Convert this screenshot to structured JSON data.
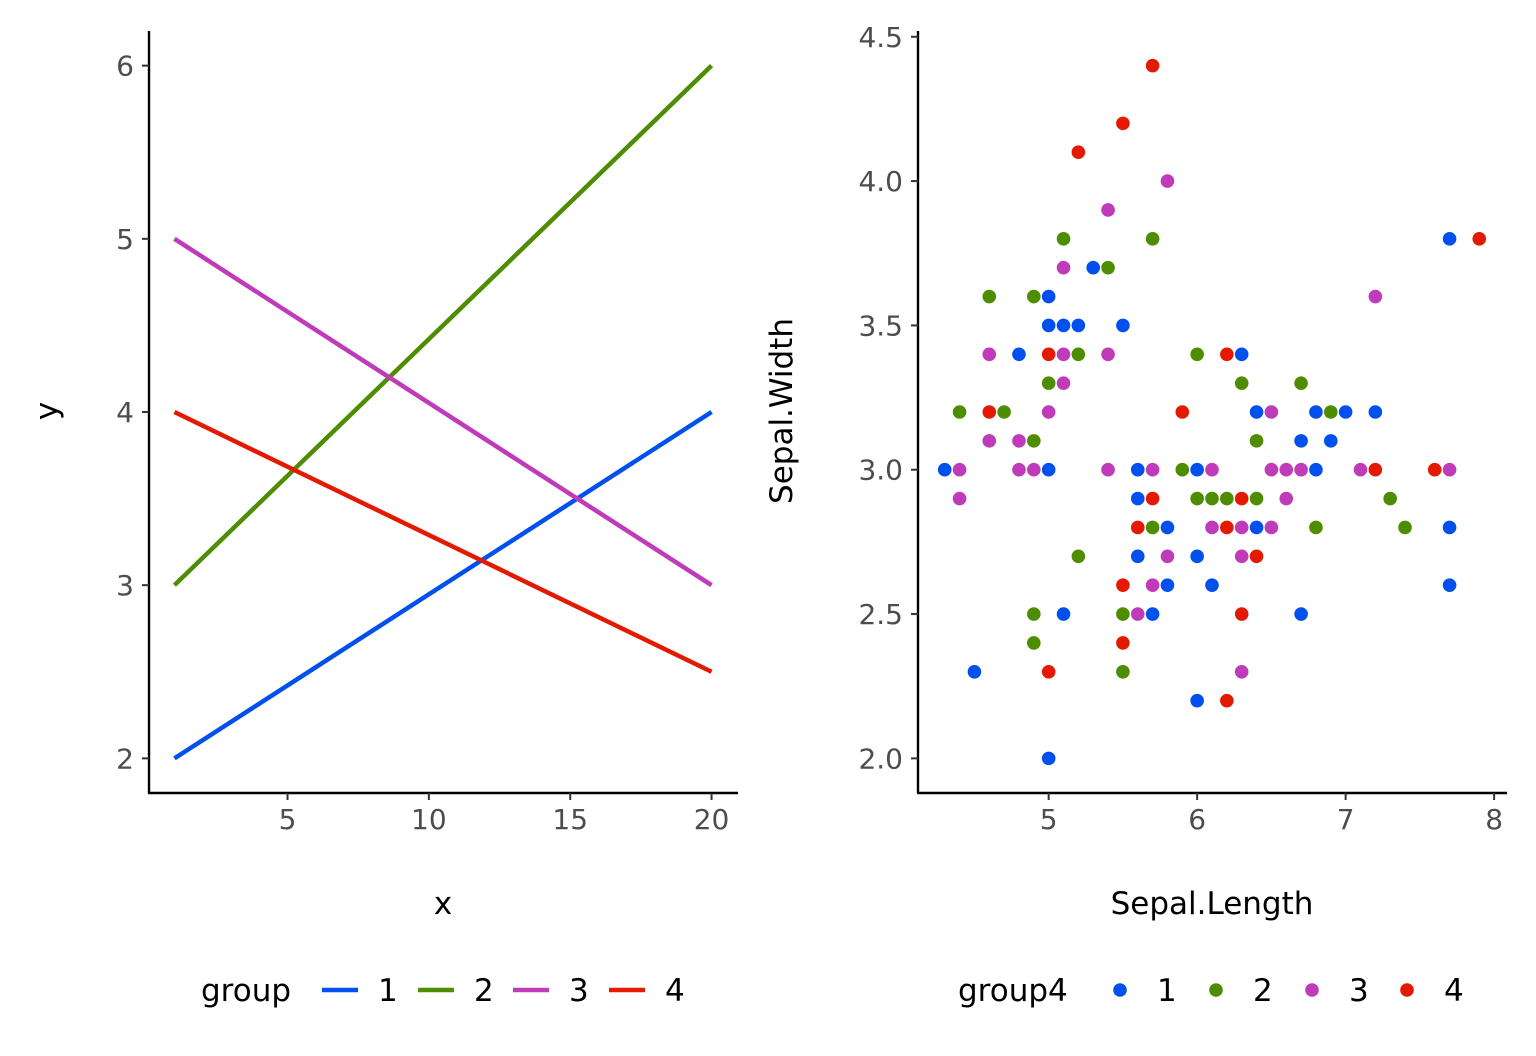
{
  "colors": {
    "1": "#0050ED",
    "2": "#4E8D00",
    "3": "#BF3BB9",
    "4": "#E41A00"
  },
  "chart_data": [
    {
      "type": "line",
      "xlabel": "x",
      "ylabel": "y",
      "xlim": [
        0.1,
        20.9
      ],
      "ylim": [
        1.8,
        6.2
      ],
      "xticks": [
        5,
        10,
        15,
        20
      ],
      "xtick_labels": [
        "5",
        "10",
        "15",
        "20"
      ],
      "yticks": [
        2,
        3,
        4,
        5,
        6
      ],
      "ytick_labels": [
        "2",
        "3",
        "4",
        "5",
        "6"
      ],
      "grid": false,
      "legend_position": "bottom",
      "legend_title": "group",
      "series": [
        {
          "name": "1",
          "x": [
            1,
            20
          ],
          "y": [
            2,
            4
          ]
        },
        {
          "name": "2",
          "x": [
            1,
            20
          ],
          "y": [
            3,
            6
          ]
        },
        {
          "name": "3",
          "x": [
            1,
            20
          ],
          "y": [
            5,
            3
          ]
        },
        {
          "name": "4",
          "x": [
            1,
            20
          ],
          "y": [
            4,
            2.5
          ]
        }
      ]
    },
    {
      "type": "scatter",
      "xlabel": "Sepal.Length",
      "ylabel": "Sepal.Width",
      "xlim": [
        4.12,
        8.08
      ],
      "ylim": [
        1.88,
        4.52
      ],
      "xticks": [
        5,
        6,
        7,
        8
      ],
      "xtick_labels": [
        "5",
        "6",
        "7",
        "8"
      ],
      "yticks": [
        2.0,
        2.5,
        3.0,
        3.5,
        4.0,
        4.5
      ],
      "ytick_labels": [
        "2.0",
        "2.5",
        "3.0",
        "3.5",
        "4.0",
        "4.5"
      ],
      "grid": false,
      "legend_position": "bottom",
      "legend_title": "group4",
      "series": [
        {
          "name": "1",
          "points": [
            [
              4.3,
              3.0
            ],
            [
              4.5,
              2.3
            ],
            [
              4.8,
              3.4
            ],
            [
              5.0,
              3.6
            ],
            [
              5.0,
              3.5
            ],
            [
              5.0,
              3.0
            ],
            [
              5.0,
              2.0
            ],
            [
              5.1,
              3.5
            ],
            [
              5.1,
              2.5
            ],
            [
              5.2,
              3.5
            ],
            [
              5.3,
              3.7
            ],
            [
              5.5,
              3.5
            ],
            [
              5.6,
              3.0
            ],
            [
              5.6,
              2.9
            ],
            [
              5.6,
              2.7
            ],
            [
              5.7,
              2.5
            ],
            [
              5.8,
              2.8
            ],
            [
              5.8,
              2.6
            ],
            [
              6.0,
              3.0
            ],
            [
              6.0,
              2.7
            ],
            [
              6.0,
              2.2
            ],
            [
              6.1,
              2.6
            ],
            [
              6.3,
              3.4
            ],
            [
              6.4,
              3.2
            ],
            [
              6.4,
              2.8
            ],
            [
              6.7,
              3.1
            ],
            [
              6.7,
              2.5
            ],
            [
              6.8,
              3.2
            ],
            [
              6.8,
              3.0
            ],
            [
              6.9,
              3.1
            ],
            [
              7.0,
              3.2
            ],
            [
              7.2,
              3.2
            ],
            [
              7.7,
              3.8
            ],
            [
              7.7,
              2.8
            ],
            [
              7.7,
              2.6
            ]
          ]
        },
        {
          "name": "2",
          "points": [
            [
              4.4,
              3.2
            ],
            [
              4.6,
              3.6
            ],
            [
              4.7,
              3.2
            ],
            [
              4.9,
              3.6
            ],
            [
              4.9,
              3.1
            ],
            [
              4.9,
              2.5
            ],
            [
              4.9,
              2.4
            ],
            [
              5.0,
              3.3
            ],
            [
              5.1,
              3.8
            ],
            [
              5.2,
              3.4
            ],
            [
              5.2,
              2.7
            ],
            [
              5.4,
              3.7
            ],
            [
              5.5,
              2.5
            ],
            [
              5.5,
              2.3
            ],
            [
              5.7,
              3.8
            ],
            [
              5.7,
              2.8
            ],
            [
              5.9,
              3.0
            ],
            [
              6.0,
              3.4
            ],
            [
              6.0,
              2.9
            ],
            [
              6.1,
              2.9
            ],
            [
              6.2,
              2.9
            ],
            [
              6.3,
              3.3
            ],
            [
              6.4,
              3.1
            ],
            [
              6.4,
              2.9
            ],
            [
              6.7,
              3.3
            ],
            [
              6.8,
              2.8
            ],
            [
              6.9,
              3.2
            ],
            [
              7.3,
              2.9
            ],
            [
              7.4,
              2.8
            ]
          ]
        },
        {
          "name": "3",
          "points": [
            [
              4.4,
              3.0
            ],
            [
              4.4,
              2.9
            ],
            [
              4.6,
              3.4
            ],
            [
              4.6,
              3.1
            ],
            [
              4.8,
              3.1
            ],
            [
              4.8,
              3.0
            ],
            [
              4.9,
              3.0
            ],
            [
              5.0,
              3.2
            ],
            [
              5.1,
              3.7
            ],
            [
              5.1,
              3.4
            ],
            [
              5.1,
              3.3
            ],
            [
              5.4,
              3.9
            ],
            [
              5.4,
              3.4
            ],
            [
              5.4,
              3.0
            ],
            [
              5.6,
              2.5
            ],
            [
              5.7,
              3.0
            ],
            [
              5.7,
              2.6
            ],
            [
              5.8,
              4.0
            ],
            [
              5.8,
              2.7
            ],
            [
              6.1,
              3.0
            ],
            [
              6.1,
              2.8
            ],
            [
              6.3,
              2.8
            ],
            [
              6.3,
              2.7
            ],
            [
              6.3,
              2.3
            ],
            [
              6.5,
              3.2
            ],
            [
              6.5,
              3.0
            ],
            [
              6.5,
              2.8
            ],
            [
              6.6,
              3.0
            ],
            [
              6.6,
              2.9
            ],
            [
              6.7,
              3.0
            ],
            [
              7.1,
              3.0
            ],
            [
              7.2,
              3.6
            ],
            [
              7.7,
              3.0
            ]
          ]
        },
        {
          "name": "4",
          "points": [
            [
              4.6,
              3.2
            ],
            [
              5.0,
              3.4
            ],
            [
              5.0,
              2.3
            ],
            [
              5.2,
              4.1
            ],
            [
              5.5,
              4.2
            ],
            [
              5.5,
              2.6
            ],
            [
              5.5,
              2.4
            ],
            [
              5.6,
              2.8
            ],
            [
              5.7,
              4.4
            ],
            [
              5.7,
              2.9
            ],
            [
              5.9,
              3.2
            ],
            [
              6.2,
              3.4
            ],
            [
              6.2,
              2.8
            ],
            [
              6.2,
              2.2
            ],
            [
              6.3,
              2.9
            ],
            [
              6.3,
              2.5
            ],
            [
              6.4,
              2.7
            ],
            [
              7.2,
              3.0
            ],
            [
              7.6,
              3.0
            ],
            [
              7.9,
              3.8
            ]
          ]
        }
      ]
    }
  ]
}
